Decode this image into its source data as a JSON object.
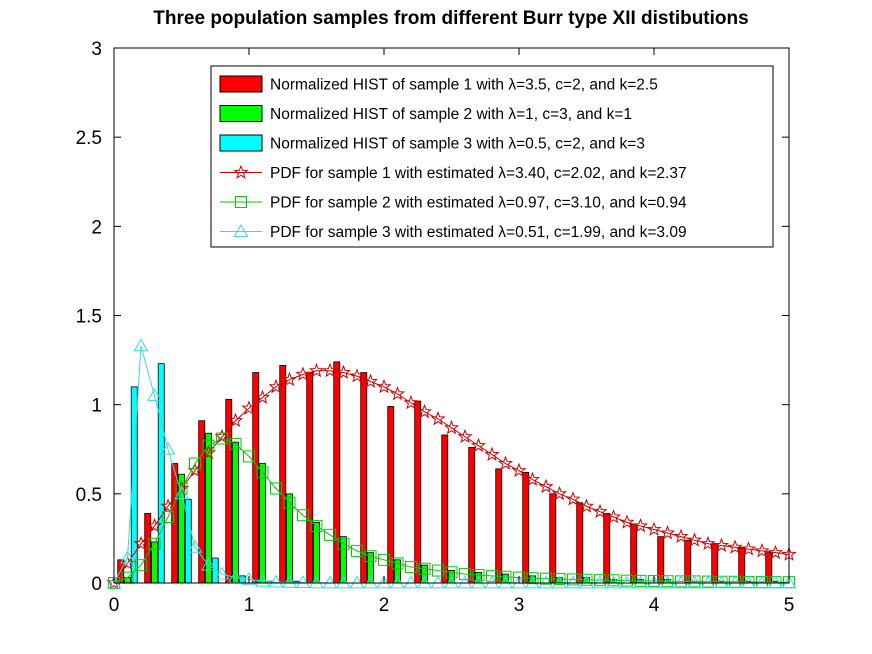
{
  "chart_data": {
    "type": "bar",
    "title": "Three population samples from different Burr type XII distibutions",
    "xlabel": "",
    "ylabel": "",
    "xlim": [
      0,
      5
    ],
    "ylim": [
      0,
      3
    ],
    "x_ticks": [
      "0",
      "1",
      "2",
      "3",
      "4",
      "5"
    ],
    "y_ticks": [
      "0",
      "0.5",
      "1",
      "1.5",
      "2",
      "2.5",
      "3"
    ],
    "grid": false,
    "legend_position": "top-right",
    "bar_series": [
      {
        "name": "Normalized HIST of sample 1 with λ=3.5, c=2, and k=2.5",
        "color": "#ff0000",
        "x": [
          0.05,
          0.25,
          0.45,
          0.65,
          0.85,
          1.05,
          1.25,
          1.45,
          1.65,
          1.85,
          2.05,
          2.25,
          2.45,
          2.65,
          2.85,
          3.05,
          3.25,
          3.45,
          3.65,
          3.85,
          4.05,
          4.25,
          4.45,
          4.65,
          4.85
        ],
        "values": [
          0.13,
          0.39,
          0.67,
          0.91,
          1.03,
          1.18,
          1.22,
          1.18,
          1.24,
          1.18,
          0.99,
          1.02,
          0.83,
          0.76,
          0.64,
          0.62,
          0.5,
          0.45,
          0.39,
          0.33,
          0.26,
          0.24,
          0.22,
          0.2,
          0.17
        ]
      },
      {
        "name": "Normalized HIST of sample 2 with λ=1, c=3, and k=1",
        "color": "#00ff00",
        "x": [
          0.1,
          0.3,
          0.5,
          0.7,
          0.9,
          1.1,
          1.3,
          1.5,
          1.7,
          1.9,
          2.1,
          2.3,
          2.5,
          2.7,
          2.9,
          3.1,
          3.3,
          3.5,
          3.7,
          3.9,
          4.1,
          4.3,
          4.5,
          4.7,
          4.9
        ],
        "values": [
          0.03,
          0.23,
          0.61,
          0.84,
          0.79,
          0.67,
          0.5,
          0.34,
          0.26,
          0.17,
          0.13,
          0.1,
          0.07,
          0.06,
          0.05,
          0.04,
          0.03,
          0.03,
          0.02,
          0.02,
          0.02,
          0.01,
          0.01,
          0.01,
          0.01
        ]
      },
      {
        "name": "Normalized HIST of sample 3 with λ=0.5, c=2, and k=3",
        "color": "#00ffff",
        "x": [
          0.15,
          0.35,
          0.55,
          0.75,
          0.95,
          1.15,
          1.35
        ],
        "values": [
          1.1,
          1.23,
          0.47,
          0.14,
          0.04,
          0.01,
          0.01
        ]
      }
    ],
    "line_series": [
      {
        "name": "PDF for sample 1 with estimated λ=3.40, c=2.02, and k=2.37",
        "color": "#cc0000",
        "marker": "star",
        "x": [
          0,
          0.1,
          0.2,
          0.3,
          0.4,
          0.5,
          0.6,
          0.7,
          0.8,
          0.9,
          1.0,
          1.1,
          1.2,
          1.3,
          1.4,
          1.5,
          1.6,
          1.7,
          1.8,
          1.9,
          2.0,
          2.1,
          2.2,
          2.3,
          2.4,
          2.5,
          2.6,
          2.7,
          2.8,
          2.9,
          3.0,
          3.1,
          3.2,
          3.3,
          3.4,
          3.5,
          3.6,
          3.7,
          3.8,
          3.9,
          4.0,
          4.1,
          4.2,
          4.3,
          4.4,
          4.5,
          4.6,
          4.7,
          4.8,
          4.9,
          5.0
        ],
        "y": [
          0.0,
          0.11,
          0.22,
          0.32,
          0.43,
          0.53,
          0.63,
          0.73,
          0.82,
          0.91,
          0.98,
          1.04,
          1.1,
          1.14,
          1.17,
          1.19,
          1.19,
          1.18,
          1.16,
          1.13,
          1.1,
          1.06,
          1.01,
          0.96,
          0.92,
          0.87,
          0.82,
          0.77,
          0.72,
          0.67,
          0.63,
          0.58,
          0.54,
          0.5,
          0.47,
          0.43,
          0.4,
          0.37,
          0.34,
          0.32,
          0.3,
          0.28,
          0.26,
          0.24,
          0.22,
          0.21,
          0.2,
          0.19,
          0.18,
          0.17,
          0.16
        ]
      },
      {
        "name": "PDF for sample 2 with estimated λ=0.97, c=3.10, and k=0.94",
        "color": "#00cc00",
        "marker": "square",
        "x": [
          0,
          0.1,
          0.2,
          0.3,
          0.4,
          0.5,
          0.6,
          0.7,
          0.8,
          0.9,
          1.0,
          1.1,
          1.2,
          1.3,
          1.4,
          1.5,
          1.6,
          1.7,
          1.8,
          1.9,
          2.0,
          2.1,
          2.2,
          2.3,
          2.4,
          2.5,
          2.6,
          2.7,
          2.8,
          2.9,
          3.0,
          3.1,
          3.2,
          3.3,
          3.4,
          3.5,
          3.6,
          3.7,
          3.8,
          3.9,
          4.0,
          4.1,
          4.2,
          4.3,
          4.4,
          4.5,
          4.6,
          4.7,
          4.8,
          4.9,
          5.0
        ],
        "y": [
          0.0,
          0.03,
          0.1,
          0.22,
          0.37,
          0.53,
          0.67,
          0.77,
          0.81,
          0.78,
          0.71,
          0.62,
          0.53,
          0.45,
          0.38,
          0.32,
          0.27,
          0.22,
          0.18,
          0.15,
          0.13,
          0.11,
          0.09,
          0.08,
          0.07,
          0.06,
          0.05,
          0.045,
          0.04,
          0.035,
          0.03,
          0.027,
          0.024,
          0.022,
          0.02,
          0.018,
          0.016,
          0.015,
          0.013,
          0.012,
          0.011,
          0.01,
          0.009,
          0.009,
          0.008,
          0.007,
          0.007,
          0.006,
          0.006,
          0.005,
          0.005
        ]
      },
      {
        "name": "PDF for sample 3 with estimated λ=0.51, c=1.99, and k=3.09",
        "color": "#33dddd",
        "marker": "triangle",
        "x": [
          0,
          0.1,
          0.2,
          0.3,
          0.4,
          0.5,
          0.6,
          0.7,
          0.8,
          0.9,
          1.0,
          1.1,
          1.2,
          1.3,
          1.4,
          1.5,
          1.6,
          1.7,
          1.8,
          1.9,
          2.0,
          2.1,
          2.2,
          2.3,
          2.4,
          2.5,
          2.6,
          2.7,
          2.8,
          2.9,
          3.0,
          3.1,
          3.2,
          3.3,
          3.4,
          3.5,
          3.6,
          3.7,
          3.8,
          3.9,
          4.0,
          4.1,
          4.2,
          4.3,
          4.4,
          4.5,
          4.6,
          4.7,
          4.8,
          4.9,
          5.0
        ],
        "y": [
          0.0,
          0.14,
          1.33,
          1.05,
          0.75,
          0.5,
          0.2,
          0.1,
          0.05,
          0.03,
          0.02,
          0.01,
          0.005,
          0.003,
          0.002,
          0.001,
          0,
          0,
          0,
          0,
          0,
          0,
          0,
          0,
          0,
          0,
          0,
          0,
          0,
          0,
          0,
          0,
          0,
          0,
          0,
          0,
          0,
          0,
          0,
          0,
          0,
          0,
          0,
          0,
          0,
          0,
          0,
          0,
          0,
          0,
          0
        ]
      }
    ]
  }
}
